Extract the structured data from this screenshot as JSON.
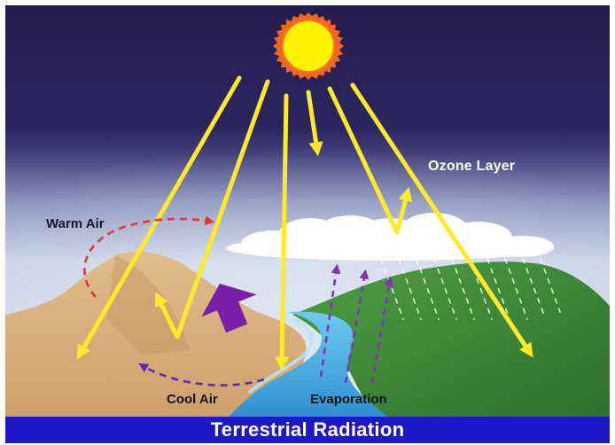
{
  "labels": {
    "ozone_layer": "Ozone Layer",
    "warm_air": "Warm Air",
    "cool_air": "Cool Air",
    "evaporation": "Evaporation"
  },
  "title": "Terrestrial Radiation",
  "colors": {
    "sky_dark": "#271f52",
    "sky_light": "#c8d4e6",
    "sun": "#fff200",
    "sun_corona": "#f26522",
    "solar_ray": "#ffea2a",
    "warm_air_arrow": "#e8352c",
    "cool_air_arrow": "#5a2bb8",
    "evaporation_arrow": "#8a2fb6",
    "thermal_arrow": "#7a1fa8",
    "land": "#dcb482",
    "hill": "#3f8b3a",
    "water": "#3aa6dc",
    "title_bar": "#1e18c8"
  }
}
